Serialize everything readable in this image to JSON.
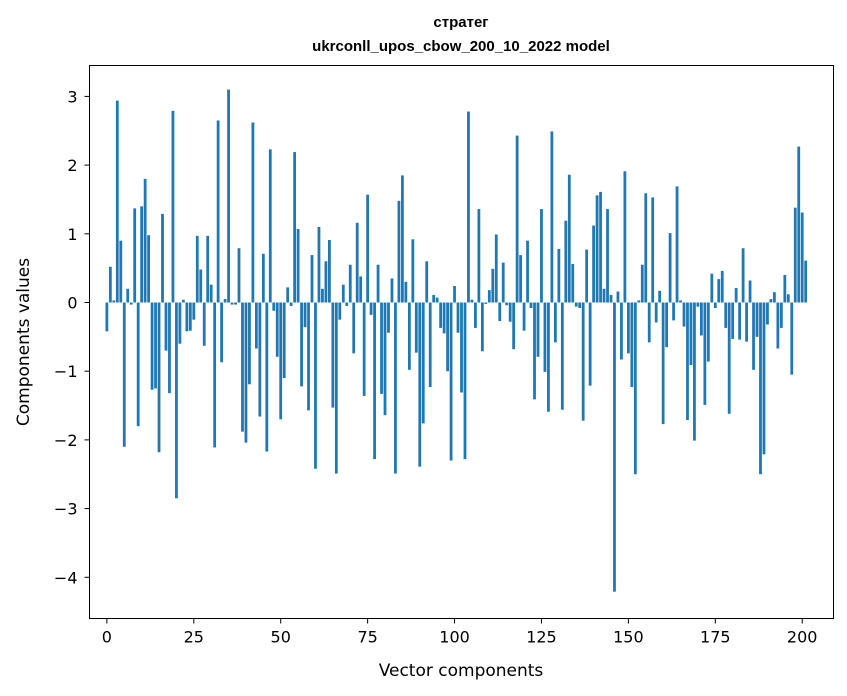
{
  "chart_data": {
    "type": "bar",
    "title": "стратег",
    "subtitle": "ukrconll_upos_cbow_200_10_2022 model",
    "xlabel": "Vector components",
    "ylabel": "Components values",
    "xlim": [
      -5,
      209
    ],
    "ylim": [
      -4.6,
      3.45
    ],
    "xticks": [
      0,
      25,
      50,
      75,
      100,
      125,
      150,
      175,
      200
    ],
    "yticks": [
      -4,
      -3,
      -2,
      -1,
      0,
      1,
      2,
      3
    ],
    "x_tick_labels": [
      "0",
      "25",
      "50",
      "75",
      "100",
      "125",
      "150",
      "175",
      "200"
    ],
    "y_tick_labels": [
      "−4",
      "−3",
      "−2",
      "−1",
      "0",
      "1",
      "2",
      "3"
    ],
    "color": "#1f77b4",
    "values": [
      -0.42,
      0.52,
      0.03,
      2.94,
      0.9,
      -2.1,
      0.2,
      -0.03,
      1.37,
      -1.8,
      1.4,
      1.8,
      0.98,
      -1.27,
      -1.25,
      -2.18,
      1.29,
      -0.7,
      -1.32,
      2.79,
      -2.85,
      -0.6,
      0.04,
      -0.42,
      -0.41,
      -0.25,
      0.97,
      0.48,
      -0.63,
      0.97,
      0.26,
      -2.11,
      2.65,
      -0.87,
      0.05,
      3.1,
      -0.03,
      -0.03,
      0.79,
      -1.88,
      -2.04,
      -1.19,
      2.62,
      -0.67,
      -1.66,
      0.71,
      -2.17,
      2.23,
      -0.12,
      -0.79,
      -1.7,
      -1.1,
      0.22,
      -0.05,
      2.19,
      1.07,
      -1.22,
      -0.36,
      -1.57,
      0.69,
      -2.42,
      1.1,
      0.2,
      0.6,
      0.91,
      -1.53,
      -2.49,
      -0.25,
      0.26,
      -0.05,
      0.55,
      -0.74,
      1.16,
      0.38,
      -1.36,
      1.57,
      -0.18,
      -2.28,
      0.55,
      -1.33,
      -1.64,
      -0.44,
      0.35,
      -2.49,
      1.48,
      1.85,
      0.3,
      -0.98,
      0.92,
      -0.73,
      -2.39,
      -1.76,
      0.6,
      -1.23,
      0.11,
      0.07,
      -0.37,
      -0.45,
      -1.0,
      -2.3,
      0.24,
      -0.44,
      -1.31,
      -2.28,
      2.78,
      0.04,
      -0.37,
      1.36,
      -0.71,
      -0.02,
      0.18,
      0.49,
      0.99,
      -0.27,
      0.58,
      -0.04,
      -0.28,
      -0.68,
      2.43,
      0.69,
      -0.41,
      0.9,
      -0.08,
      -1.41,
      -0.79,
      1.36,
      -1.01,
      -1.59,
      2.49,
      -0.58,
      0.78,
      -1.56,
      1.19,
      1.86,
      0.56,
      -0.06,
      -0.08,
      -1.72,
      0.77,
      -1.21,
      1.12,
      1.56,
      1.61,
      0.2,
      1.36,
      0.11,
      -4.21,
      0.16,
      -0.83,
      1.91,
      -0.74,
      -1.23,
      -2.5,
      0.03,
      0.55,
      1.59,
      -0.58,
      1.53,
      -0.29,
      0.17,
      -1.77,
      -0.65,
      1.01,
      -0.26,
      1.69,
      0.03,
      -0.35,
      -1.71,
      -0.91,
      -2.01,
      -0.06,
      -0.48,
      -1.49,
      -0.86,
      0.42,
      -0.08,
      0.34,
      0.46,
      -0.37,
      -1.62,
      -0.53,
      0.21,
      -0.54,
      0.79,
      -0.57,
      0.32,
      -0.98,
      -0.5,
      -2.5,
      -2.21,
      -0.32,
      0.05,
      0.15,
      -0.67,
      -0.37,
      0.4,
      0.12,
      -1.05,
      1.38,
      2.27,
      1.31,
      0.61
    ]
  }
}
